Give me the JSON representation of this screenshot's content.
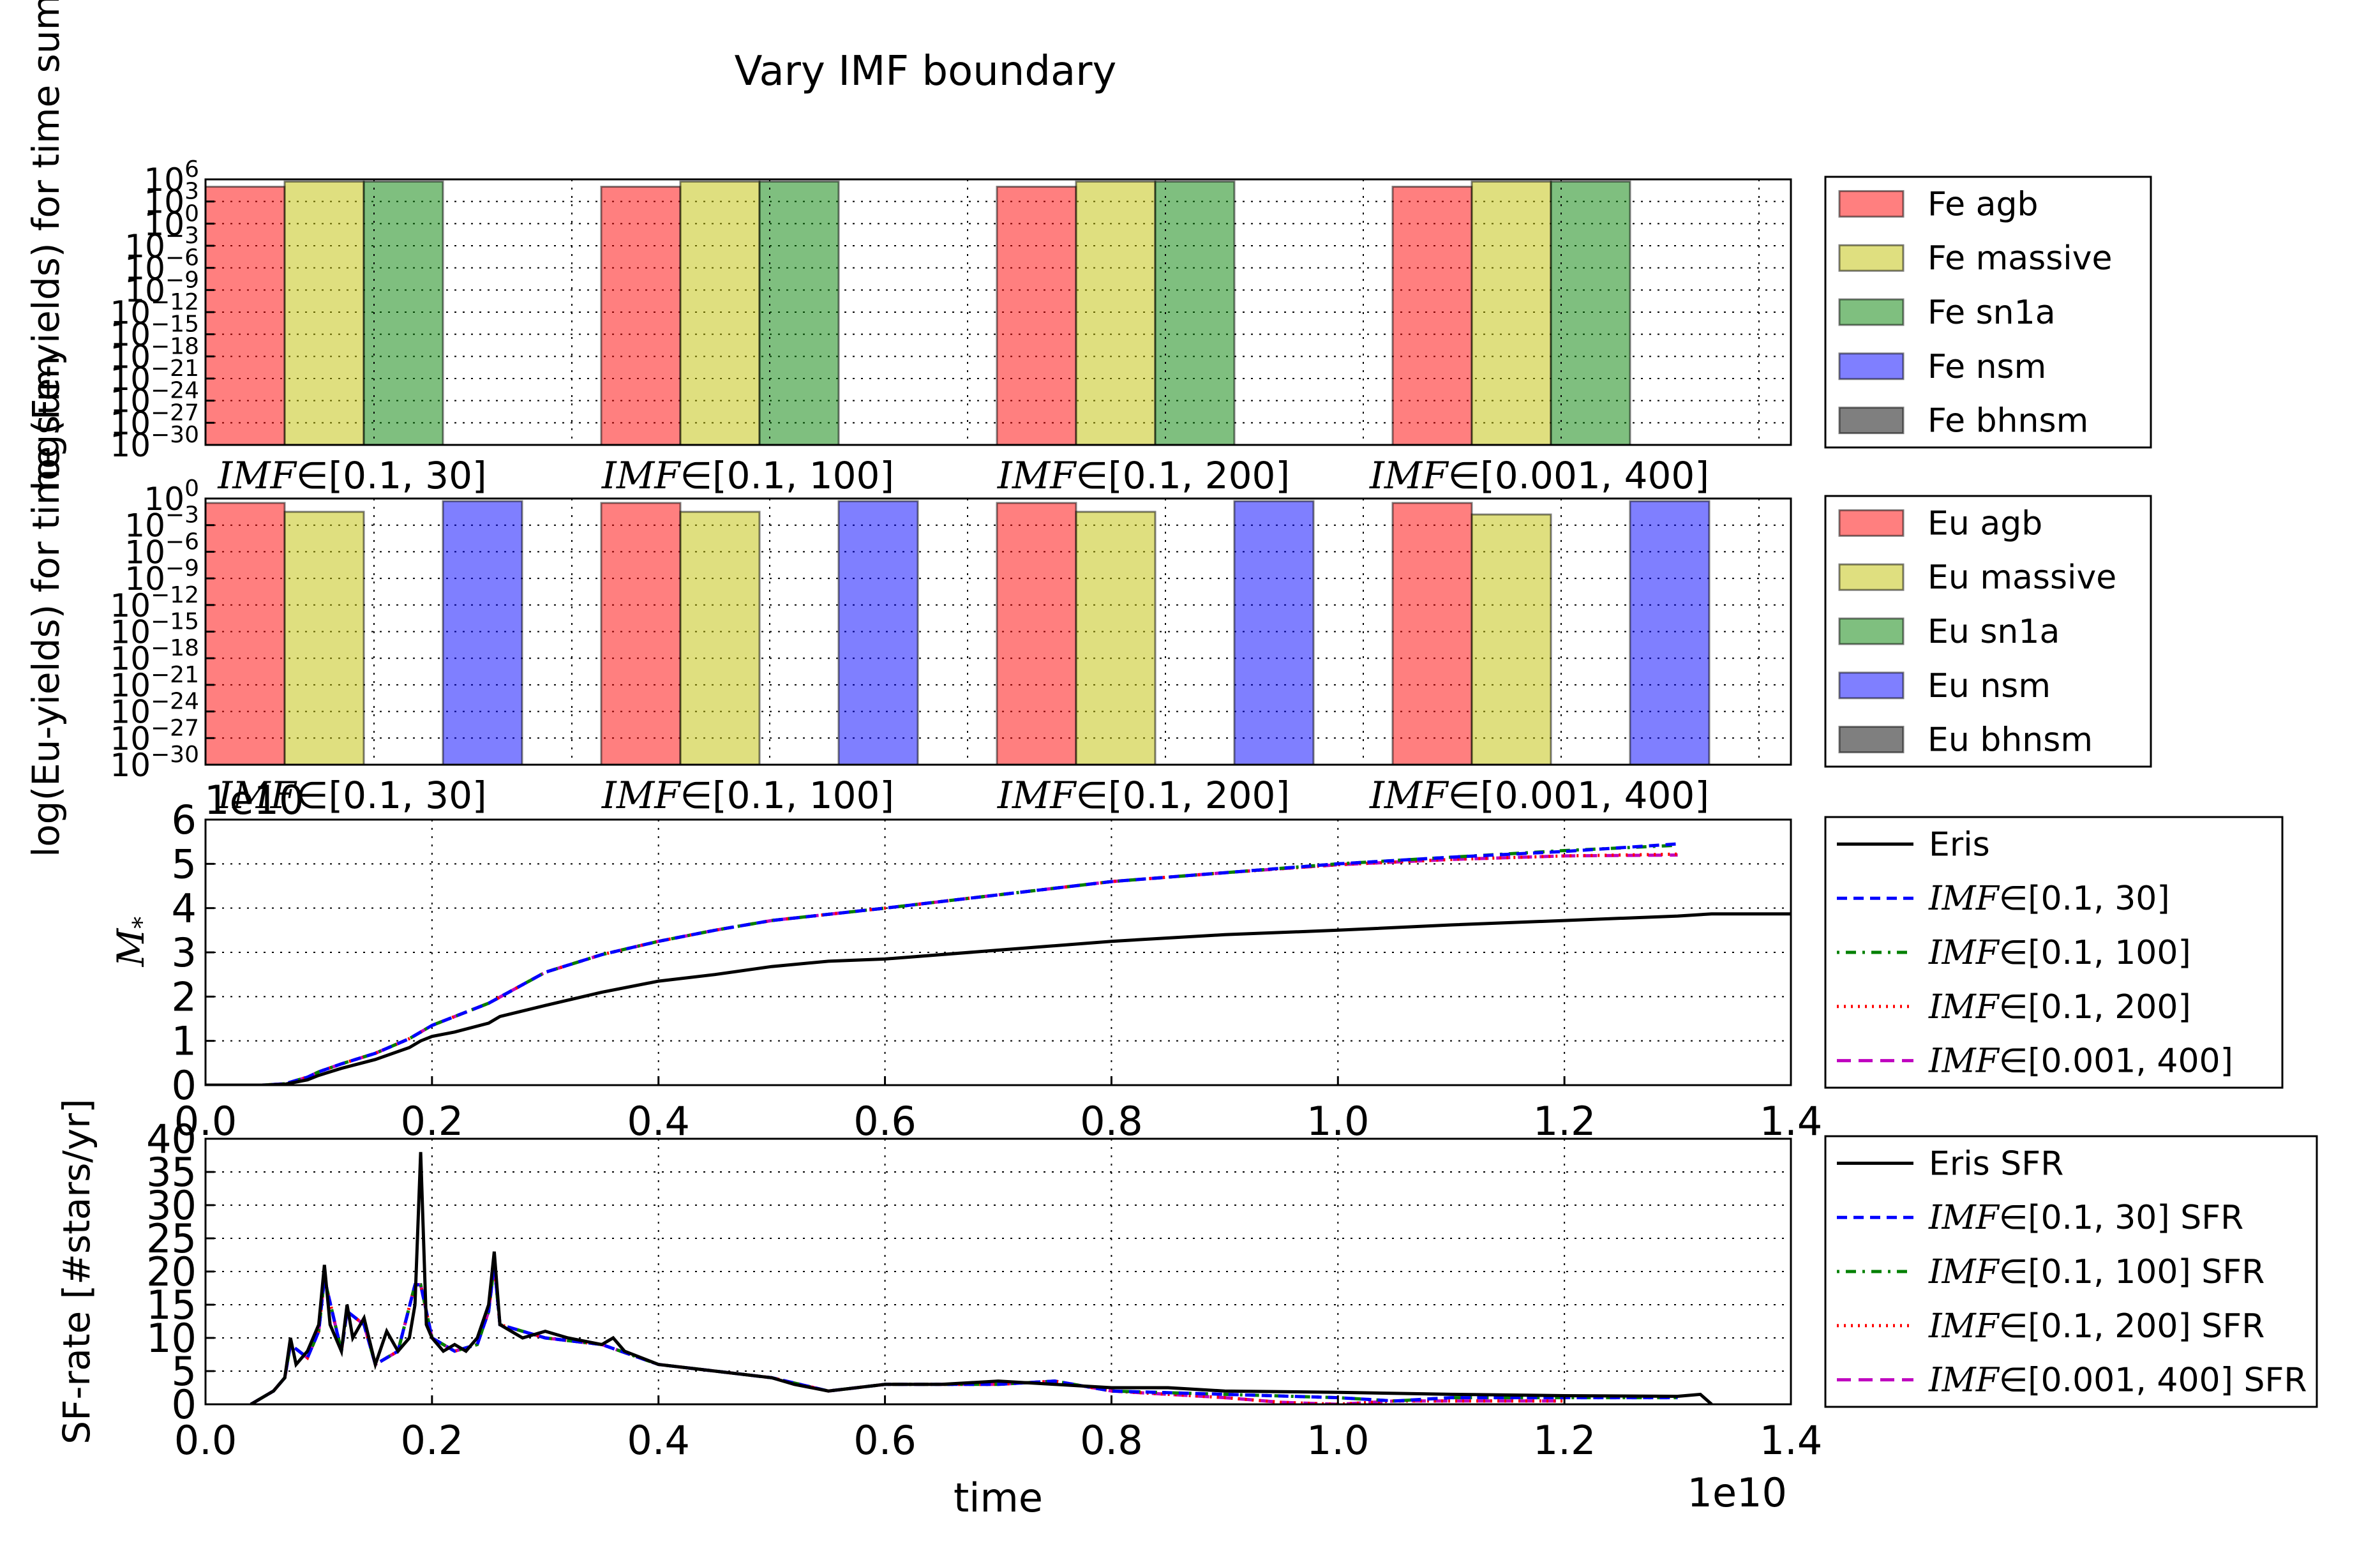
{
  "figure": {
    "title": "Vary IMF boundary"
  },
  "chart_data": [
    {
      "type": "bar",
      "id": "fe_bars",
      "ylabel": "log(Fe-yields) for time sum",
      "yscale": "log",
      "ylim_exp": [
        -30,
        6
      ],
      "yticks_exp": [
        -30,
        -27,
        -24,
        -21,
        -18,
        -15,
        -12,
        -9,
        -6,
        -3,
        0,
        3,
        6
      ],
      "categories": [
        "[0.1, 30]",
        "[0.1, 100]",
        "[0.1, 200]",
        "[0.001, 400]"
      ],
      "category_prefix": "IMF∈",
      "series": [
        {
          "name": "Fe agb",
          "color": "#ff0000",
          "log10_values": [
            5.0,
            5.0,
            5.0,
            5.0
          ]
        },
        {
          "name": "Fe massive",
          "color": "#bfbf00",
          "log10_values": [
            5.7,
            5.7,
            5.7,
            5.7
          ]
        },
        {
          "name": "Fe sn1a",
          "color": "#008000",
          "log10_values": [
            5.7,
            5.7,
            5.7,
            5.7
          ]
        },
        {
          "name": "Fe nsm",
          "color": "#0000ff",
          "log10_values": [
            null,
            null,
            null,
            null
          ]
        },
        {
          "name": "Fe bhnsm",
          "color": "#000000",
          "log10_values": [
            null,
            null,
            null,
            null
          ]
        }
      ],
      "legend_position": "outside right"
    },
    {
      "type": "bar",
      "id": "eu_bars",
      "ylabel": "log(Eu-yields) for time sum",
      "yscale": "log",
      "ylim_exp": [
        -30,
        0
      ],
      "yticks_exp": [
        -30,
        -27,
        -24,
        -21,
        -18,
        -15,
        -12,
        -9,
        -6,
        -3,
        0
      ],
      "categories": [
        "[0.1, 30]",
        "[0.1, 100]",
        "[0.1, 200]",
        "[0.001, 400]"
      ],
      "category_prefix": "IMF∈",
      "series": [
        {
          "name": "Eu agb",
          "color": "#ff0000",
          "log10_values": [
            -0.5,
            -0.5,
            -0.5,
            -0.5
          ]
        },
        {
          "name": "Eu massive",
          "color": "#bfbf00",
          "log10_values": [
            -1.5,
            -1.5,
            -1.5,
            -1.8
          ]
        },
        {
          "name": "Eu sn1a",
          "color": "#008000",
          "log10_values": [
            null,
            null,
            null,
            null
          ]
        },
        {
          "name": "Eu nsm",
          "color": "#0000ff",
          "log10_values": [
            -0.3,
            -0.3,
            -0.3,
            -0.3
          ]
        },
        {
          "name": "Eu bhnsm",
          "color": "#000000",
          "log10_values": [
            null,
            null,
            null,
            null
          ]
        }
      ],
      "legend_position": "outside right"
    },
    {
      "type": "line",
      "id": "mstar",
      "ylabel": "M*",
      "offset_text": "1e10",
      "xlim": [
        0.0,
        1.4
      ],
      "ylim": [
        0,
        6
      ],
      "xticks": [
        0.0,
        0.2,
        0.4,
        0.6,
        0.8,
        1.0,
        1.2,
        1.4
      ],
      "yticks": [
        0,
        1,
        2,
        3,
        4,
        5,
        6
      ],
      "xtick_labels": [
        "0.0",
        "0.2",
        "0.4",
        "0.6",
        "0.8",
        "1.0",
        "1.2",
        "1.4"
      ],
      "ytick_labels": [
        "0",
        "1",
        "2",
        "3",
        "4",
        "5",
        "6"
      ],
      "series": [
        {
          "name": "Eris",
          "color": "#000000",
          "dash": "solid",
          "x": [
            0.0,
            0.05,
            0.07,
            0.09,
            0.1,
            0.12,
            0.15,
            0.18,
            0.19,
            0.2,
            0.22,
            0.25,
            0.26,
            0.3,
            0.35,
            0.4,
            0.45,
            0.5,
            0.55,
            0.6,
            0.7,
            0.8,
            0.9,
            1.0,
            1.1,
            1.2,
            1.3,
            1.33,
            1.4
          ],
          "y": [
            0,
            0,
            0.02,
            0.12,
            0.22,
            0.38,
            0.58,
            0.85,
            1.0,
            1.1,
            1.2,
            1.4,
            1.55,
            1.8,
            2.1,
            2.35,
            2.5,
            2.68,
            2.8,
            2.85,
            3.05,
            3.25,
            3.4,
            3.5,
            3.62,
            3.72,
            3.82,
            3.87,
            3.87
          ]
        },
        {
          "name": "[0.1, 30]",
          "color": "#0000ff",
          "dash": "16,10",
          "x": [
            0.0,
            0.05,
            0.07,
            0.09,
            0.1,
            0.12,
            0.15,
            0.18,
            0.2,
            0.25,
            0.3,
            0.35,
            0.4,
            0.45,
            0.5,
            0.6,
            0.7,
            0.8,
            0.9,
            1.0,
            1.1,
            1.2,
            1.3
          ],
          "y": [
            0,
            0,
            0.03,
            0.18,
            0.3,
            0.48,
            0.72,
            1.05,
            1.35,
            1.85,
            2.55,
            2.95,
            3.25,
            3.5,
            3.72,
            4.0,
            4.3,
            4.6,
            4.8,
            5.0,
            5.15,
            5.28,
            5.45
          ]
        },
        {
          "name": "[0.1, 100]",
          "color": "#008000",
          "dash": "4,10,16,10",
          "x": [
            0.0,
            0.05,
            0.07,
            0.09,
            0.1,
            0.12,
            0.15,
            0.18,
            0.2,
            0.25,
            0.3,
            0.35,
            0.4,
            0.45,
            0.5,
            0.6,
            0.7,
            0.8,
            0.9,
            1.0,
            1.1,
            1.2,
            1.3
          ],
          "y": [
            0,
            0,
            0.03,
            0.18,
            0.3,
            0.48,
            0.72,
            1.05,
            1.35,
            1.85,
            2.55,
            2.95,
            3.25,
            3.5,
            3.72,
            4.0,
            4.3,
            4.6,
            4.8,
            5.0,
            5.15,
            5.3,
            5.42
          ]
        },
        {
          "name": "[0.1, 200]",
          "color": "#ff0000",
          "dash": "3,8",
          "x": [
            0.0,
            0.05,
            0.07,
            0.09,
            0.1,
            0.12,
            0.15,
            0.18,
            0.2,
            0.25,
            0.3,
            0.35,
            0.4,
            0.45,
            0.5,
            0.6,
            0.7,
            0.8,
            0.9,
            1.0,
            1.1,
            1.2,
            1.3
          ],
          "y": [
            0,
            0,
            0.03,
            0.18,
            0.3,
            0.48,
            0.72,
            1.05,
            1.35,
            1.85,
            2.55,
            2.95,
            3.25,
            3.5,
            3.72,
            4.0,
            4.3,
            4.6,
            4.8,
            4.98,
            5.1,
            5.18,
            5.22
          ]
        },
        {
          "name": "[0.001, 400]",
          "color": "#bf00bf",
          "dash": "22,12",
          "x": [
            0.0,
            0.05,
            0.07,
            0.09,
            0.1,
            0.12,
            0.15,
            0.18,
            0.2,
            0.25,
            0.3,
            0.35,
            0.4,
            0.45,
            0.5,
            0.6,
            0.7,
            0.8,
            0.9,
            1.0,
            1.1,
            1.2,
            1.3
          ],
          "y": [
            0,
            0,
            0.03,
            0.18,
            0.3,
            0.48,
            0.72,
            1.05,
            1.35,
            1.85,
            2.55,
            2.95,
            3.25,
            3.5,
            3.72,
            4.0,
            4.3,
            4.6,
            4.8,
            4.98,
            5.1,
            5.18,
            5.2
          ]
        }
      ],
      "legend_position": "outside right",
      "grid": true
    },
    {
      "type": "line",
      "id": "sfr",
      "xlabel": "time",
      "ylabel": "SF-rate [#stars/yr]",
      "offset_text": "1e10",
      "xlim": [
        0.0,
        1.4
      ],
      "ylim": [
        0,
        40
      ],
      "xticks": [
        0.0,
        0.2,
        0.4,
        0.6,
        0.8,
        1.0,
        1.2,
        1.4
      ],
      "yticks": [
        0,
        5,
        10,
        15,
        20,
        25,
        30,
        35,
        40
      ],
      "xtick_labels": [
        "0.0",
        "0.2",
        "0.4",
        "0.6",
        "0.8",
        "1.0",
        "1.2",
        "1.4"
      ],
      "ytick_labels": [
        "0",
        "5",
        "10",
        "15",
        "20",
        "25",
        "30",
        "35",
        "40"
      ],
      "series": [
        {
          "name": "Eris SFR",
          "color": "#000000",
          "dash": "solid",
          "x": [
            0.04,
            0.05,
            0.06,
            0.07,
            0.075,
            0.08,
            0.09,
            0.1,
            0.105,
            0.11,
            0.12,
            0.125,
            0.13,
            0.14,
            0.15,
            0.16,
            0.17,
            0.18,
            0.185,
            0.19,
            0.195,
            0.2,
            0.21,
            0.22,
            0.23,
            0.24,
            0.25,
            0.255,
            0.26,
            0.28,
            0.3,
            0.32,
            0.35,
            0.36,
            0.37,
            0.4,
            0.45,
            0.5,
            0.52,
            0.55,
            0.6,
            0.65,
            0.7,
            0.75,
            0.8,
            0.85,
            0.9,
            1.0,
            1.1,
            1.2,
            1.3,
            1.32,
            1.33
          ],
          "y": [
            0,
            1,
            2,
            4,
            10,
            6,
            8,
            12,
            21,
            12,
            8,
            15,
            10,
            13,
            6,
            11,
            8,
            10,
            15,
            38,
            12,
            10,
            8,
            9,
            8,
            10,
            15,
            23,
            12,
            10,
            11,
            10,
            9,
            10,
            8,
            6,
            5,
            4,
            3,
            2,
            3,
            3,
            3.5,
            3,
            2.5,
            2.5,
            2,
            1.8,
            1.5,
            1.3,
            1.2,
            1.5,
            0
          ]
        },
        {
          "name": "[0.1, 30] SFR",
          "color": "#0000ff",
          "dash": "16,10",
          "x": [
            0.04,
            0.06,
            0.07,
            0.075,
            0.09,
            0.1,
            0.105,
            0.12,
            0.125,
            0.14,
            0.15,
            0.17,
            0.185,
            0.19,
            0.2,
            0.22,
            0.24,
            0.25,
            0.255,
            0.26,
            0.3,
            0.35,
            0.4,
            0.5,
            0.55,
            0.6,
            0.7,
            0.75,
            0.8,
            0.9,
            1.0,
            1.05,
            1.1,
            1.2,
            1.3
          ],
          "y": [
            0,
            2,
            4,
            9,
            7,
            11,
            19,
            8,
            14,
            12,
            6,
            8,
            18,
            18,
            10,
            8,
            9,
            14,
            21,
            12,
            10,
            9,
            6,
            4,
            2,
            3,
            3,
            3.5,
            2,
            1.5,
            1,
            0.5,
            1,
            1,
            1
          ]
        },
        {
          "name": "[0.1, 100] SFR",
          "color": "#008000",
          "dash": "4,10,16,10",
          "x": [
            0.04,
            0.06,
            0.07,
            0.075,
            0.09,
            0.1,
            0.105,
            0.12,
            0.125,
            0.14,
            0.15,
            0.17,
            0.185,
            0.19,
            0.2,
            0.22,
            0.24,
            0.25,
            0.255,
            0.26,
            0.3,
            0.35,
            0.4,
            0.5,
            0.55,
            0.6,
            0.7,
            0.75,
            0.8,
            0.9,
            1.0,
            1.05,
            1.1,
            1.2,
            1.3
          ],
          "y": [
            0,
            2,
            4,
            9,
            7,
            11,
            19,
            8,
            14,
            12,
            6,
            8,
            18,
            18,
            10,
            8,
            9,
            14,
            21,
            12,
            10,
            9,
            6,
            4,
            2,
            3,
            3,
            3.5,
            2,
            1.5,
            1,
            0.5,
            1,
            1,
            1
          ]
        },
        {
          "name": "[0.1, 200] SFR",
          "color": "#ff0000",
          "dash": "3,8",
          "x": [
            0.04,
            0.06,
            0.07,
            0.075,
            0.09,
            0.1,
            0.105,
            0.12,
            0.125,
            0.14,
            0.15,
            0.17,
            0.185,
            0.19,
            0.2,
            0.22,
            0.24,
            0.25,
            0.255,
            0.26,
            0.3,
            0.35,
            0.4,
            0.5,
            0.55,
            0.6,
            0.7,
            0.75,
            0.8,
            0.9,
            0.95,
            1.0,
            1.05,
            1.1,
            1.2
          ],
          "y": [
            0,
            2,
            4,
            9,
            7,
            11,
            19,
            8,
            14,
            12,
            6,
            8,
            18,
            18,
            10,
            8,
            9,
            14,
            21,
            12,
            10,
            9,
            6,
            4,
            2,
            3,
            3,
            3.5,
            2,
            1,
            0.3,
            0,
            0.5,
            0.5,
            0.5
          ]
        },
        {
          "name": "[0.001, 400] SFR",
          "color": "#bf00bf",
          "dash": "22,12",
          "x": [
            0.04,
            0.06,
            0.07,
            0.075,
            0.09,
            0.1,
            0.105,
            0.12,
            0.125,
            0.14,
            0.15,
            0.17,
            0.185,
            0.19,
            0.2,
            0.22,
            0.24,
            0.25,
            0.255,
            0.26,
            0.3,
            0.35,
            0.4,
            0.5,
            0.55,
            0.6,
            0.7,
            0.75,
            0.8,
            0.9,
            0.95,
            1.0,
            1.05,
            1.1,
            1.2
          ],
          "y": [
            0,
            2,
            4,
            9,
            7,
            11,
            19,
            8,
            14,
            12,
            6,
            8,
            18,
            18,
            10,
            8,
            9,
            14,
            21,
            12,
            10,
            9,
            6,
            4,
            2,
            3,
            3,
            3.5,
            2,
            1,
            0.3,
            0,
            0.5,
            0.5,
            0.5
          ]
        }
      ],
      "legend_position": "outside right",
      "grid": true
    }
  ]
}
